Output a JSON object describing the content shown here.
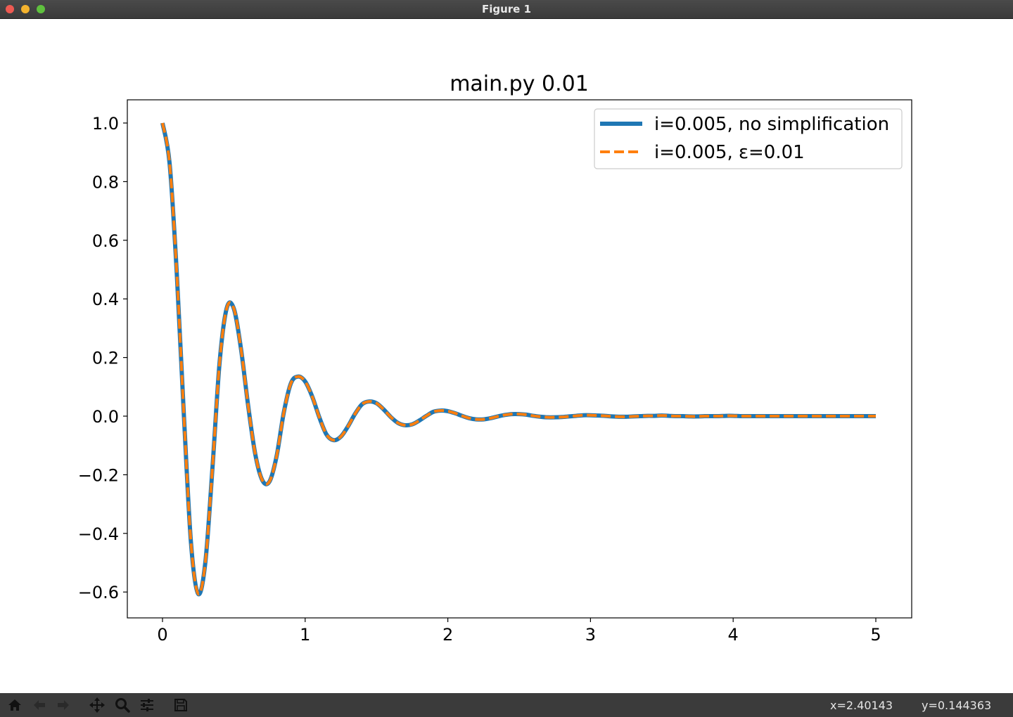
{
  "window": {
    "title": "Figure 1"
  },
  "toolbar": {
    "buttons": [
      {
        "name": "home-icon"
      },
      {
        "name": "back-icon"
      },
      {
        "name": "forward-icon"
      },
      {
        "name": "pan-icon"
      },
      {
        "name": "zoom-icon"
      },
      {
        "name": "configure-subplots-icon"
      },
      {
        "name": "save-icon"
      }
    ],
    "x_readout": "x=2.40143",
    "y_readout": "y=0.144363"
  },
  "chart_data": {
    "type": "line",
    "title": "main.py 0.01",
    "xlabel": "",
    "ylabel": "",
    "xlim": [
      -0.25,
      5.25
    ],
    "ylim": [
      -0.69,
      1.08
    ],
    "xticks": [
      "0",
      "1",
      "2",
      "3",
      "4",
      "5"
    ],
    "yticks": [
      "1.0",
      "0.8",
      "0.6",
      "0.4",
      "0.2",
      "0.0",
      "−0.2",
      "−0.4",
      "−0.6"
    ],
    "grid": false,
    "legend_position": "top-right",
    "x": [
      0.0,
      0.05,
      0.1,
      0.15,
      0.2,
      0.25,
      0.3,
      0.35,
      0.4,
      0.45,
      0.5,
      0.55,
      0.6,
      0.65,
      0.7,
      0.75,
      0.8,
      0.85,
      0.9,
      0.95,
      1.0,
      1.05,
      1.1,
      1.15,
      1.2,
      1.25,
      1.3,
      1.35,
      1.4,
      1.45,
      1.5,
      1.55,
      1.6,
      1.65,
      1.7,
      1.75,
      1.8,
      1.85,
      1.9,
      1.95,
      2.0,
      2.05,
      2.1,
      2.15,
      2.2,
      2.25,
      2.3,
      2.35,
      2.4,
      2.45,
      2.5,
      2.55,
      2.6,
      2.65,
      2.7,
      2.75,
      2.8,
      2.85,
      2.9,
      2.95,
      3.0,
      3.05,
      3.1,
      3.15,
      3.2,
      3.25,
      3.3,
      3.35,
      3.4,
      3.45,
      3.5,
      3.55,
      3.6,
      3.65,
      3.7,
      3.75,
      3.8,
      3.85,
      3.9,
      3.95,
      4.0,
      4.05,
      4.1,
      4.15,
      4.2,
      4.25,
      4.3,
      4.35,
      4.4,
      4.45,
      4.5,
      4.55,
      4.6,
      4.65,
      4.7,
      4.75,
      4.8,
      4.85,
      4.9,
      4.95,
      5.0
    ],
    "series": [
      {
        "name": "i=0.005, no simplification",
        "color": "#1f77b4",
        "style": "solid",
        "values": [
          1.0,
          0.861,
          0.488,
          0.002,
          -0.434,
          -0.606,
          -0.5,
          -0.178,
          0.182,
          0.368,
          0.367,
          0.23,
          0.037,
          -0.129,
          -0.219,
          -0.223,
          -0.136,
          0.012,
          0.112,
          0.135,
          0.118,
          0.066,
          -0.005,
          -0.063,
          -0.082,
          -0.07,
          -0.035,
          0.008,
          0.041,
          0.05,
          0.044,
          0.023,
          -0.003,
          -0.023,
          -0.031,
          -0.028,
          -0.015,
          0.001,
          0.015,
          0.019,
          0.017,
          0.01,
          0.001,
          -0.007,
          -0.011,
          -0.011,
          -0.007,
          -0.001,
          0.004,
          0.007,
          0.007,
          0.005,
          0.001,
          -0.002,
          -0.004,
          -0.004,
          -0.003,
          -0.001,
          0.001,
          0.003,
          0.003,
          0.002,
          0.001,
          -0.001,
          -0.002,
          -0.002,
          -0.001,
          0.0,
          0.001,
          0.001,
          0.002,
          0.001,
          0.0,
          0.0,
          -0.001,
          -0.001,
          0.0,
          0.0,
          0.0,
          0.001,
          0.001,
          0.0,
          0.0,
          0.0,
          0.0,
          0.0,
          0.0,
          0.0,
          0.0,
          0.0,
          0.0,
          0.0,
          0.0,
          0.0,
          0.0,
          0.0,
          0.0,
          0.0,
          0.0,
          0.0,
          0.0
        ]
      },
      {
        "name": "i=0.005, ε=0.01",
        "color": "#ff7f0e",
        "style": "dashed",
        "values": [
          1.0,
          0.861,
          0.488,
          0.002,
          -0.434,
          -0.606,
          -0.5,
          -0.178,
          0.182,
          0.368,
          0.367,
          0.23,
          0.037,
          -0.129,
          -0.219,
          -0.223,
          -0.136,
          0.012,
          0.112,
          0.135,
          0.118,
          0.066,
          -0.005,
          -0.063,
          -0.082,
          -0.07,
          -0.035,
          0.008,
          0.041,
          0.05,
          0.044,
          0.023,
          -0.003,
          -0.023,
          -0.031,
          -0.028,
          -0.015,
          0.001,
          0.015,
          0.019,
          0.017,
          0.01,
          0.001,
          -0.007,
          -0.011,
          -0.011,
          -0.007,
          -0.001,
          0.004,
          0.007,
          0.007,
          0.005,
          0.001,
          -0.002,
          -0.004,
          -0.004,
          -0.003,
          -0.001,
          0.001,
          0.003,
          0.003,
          0.002,
          0.001,
          -0.001,
          -0.002,
          -0.002,
          -0.001,
          0.0,
          0.001,
          0.001,
          0.002,
          0.001,
          0.0,
          0.0,
          -0.001,
          -0.001,
          0.0,
          0.0,
          0.0,
          0.001,
          0.001,
          0.0,
          0.0,
          0.0,
          0.0,
          0.0,
          0.0,
          0.0,
          0.0,
          0.0,
          0.0,
          0.0,
          0.0,
          0.0,
          0.0,
          0.0,
          0.0,
          0.0,
          0.0,
          0.0,
          0.0
        ]
      }
    ]
  }
}
